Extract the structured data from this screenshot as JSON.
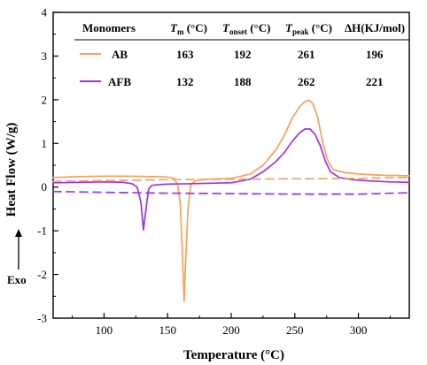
{
  "chart_data": {
    "type": "line",
    "xlabel": "Temperature (°C)",
    "ylabel": "Heat Flow (W/g)",
    "xlim": [
      60,
      340
    ],
    "ylim": [
      -3,
      4
    ],
    "xticks": [
      "100",
      "150",
      "200",
      "250",
      "300"
    ],
    "yticks": [
      "-3",
      "-2",
      "-1",
      "0",
      "1",
      "2",
      "3",
      "4"
    ],
    "grid": false,
    "exo_label": "Exo",
    "colors": {
      "AB": "#f5a25d",
      "AFB": "#9d33e6"
    },
    "series": [
      {
        "name": "AB",
        "style": "solid",
        "x": [
          60,
          80,
          100,
          120,
          140,
          150,
          155,
          158,
          160,
          162,
          163,
          164,
          166,
          168,
          172,
          180,
          200,
          215,
          225,
          235,
          242,
          248,
          254,
          258,
          261,
          264,
          268,
          272,
          276,
          280,
          290,
          300,
          320,
          340
        ],
        "y": [
          0.22,
          0.24,
          0.25,
          0.25,
          0.24,
          0.23,
          0.2,
          0.05,
          -0.4,
          -1.8,
          -2.62,
          -1.8,
          -0.5,
          0.05,
          0.15,
          0.18,
          0.2,
          0.3,
          0.5,
          0.85,
          1.2,
          1.58,
          1.85,
          1.96,
          1.99,
          1.92,
          1.6,
          1.0,
          0.6,
          0.4,
          0.33,
          0.3,
          0.27,
          0.26
        ]
      },
      {
        "name": "AFB",
        "style": "solid",
        "x": [
          60,
          80,
          100,
          115,
          122,
          126,
          129,
          131,
          133,
          135,
          137,
          140,
          150,
          170,
          200,
          215,
          225,
          235,
          242,
          248,
          254,
          258,
          262,
          266,
          270,
          274,
          278,
          285,
          295,
          310,
          325,
          340
        ],
        "y": [
          0.1,
          0.11,
          0.12,
          0.11,
          0.08,
          0.0,
          -0.35,
          -0.98,
          -0.5,
          -0.05,
          0.03,
          0.05,
          0.07,
          0.08,
          0.1,
          0.18,
          0.35,
          0.58,
          0.8,
          1.05,
          1.25,
          1.33,
          1.33,
          1.2,
          0.95,
          0.6,
          0.35,
          0.22,
          0.17,
          0.14,
          0.12,
          0.11
        ]
      },
      {
        "name": "AB baseline",
        "style": "dashed",
        "x": [
          60,
          100,
          150,
          200,
          250,
          300,
          340
        ],
        "y": [
          0.13,
          0.15,
          0.17,
          0.18,
          0.19,
          0.2,
          0.22
        ]
      },
      {
        "name": "AFB baseline",
        "style": "dashed",
        "x": [
          60,
          100,
          150,
          200,
          250,
          300,
          340
        ],
        "y": [
          -0.1,
          -0.12,
          -0.14,
          -0.15,
          -0.16,
          -0.16,
          -0.13
        ]
      }
    ],
    "table": {
      "headers": [
        "Monomers",
        "T",
        "m",
        " (°C)",
        "T",
        "onset",
        " (°C)",
        "T",
        "peak",
        " (°C)",
        "ΔH(KJ/mol)"
      ],
      "rows": [
        {
          "name": "AB",
          "values": [
            "163",
            "192",
            "261",
            "196"
          ]
        },
        {
          "name": "AFB",
          "values": [
            "132",
            "188",
            "262",
            "221"
          ]
        }
      ]
    }
  }
}
